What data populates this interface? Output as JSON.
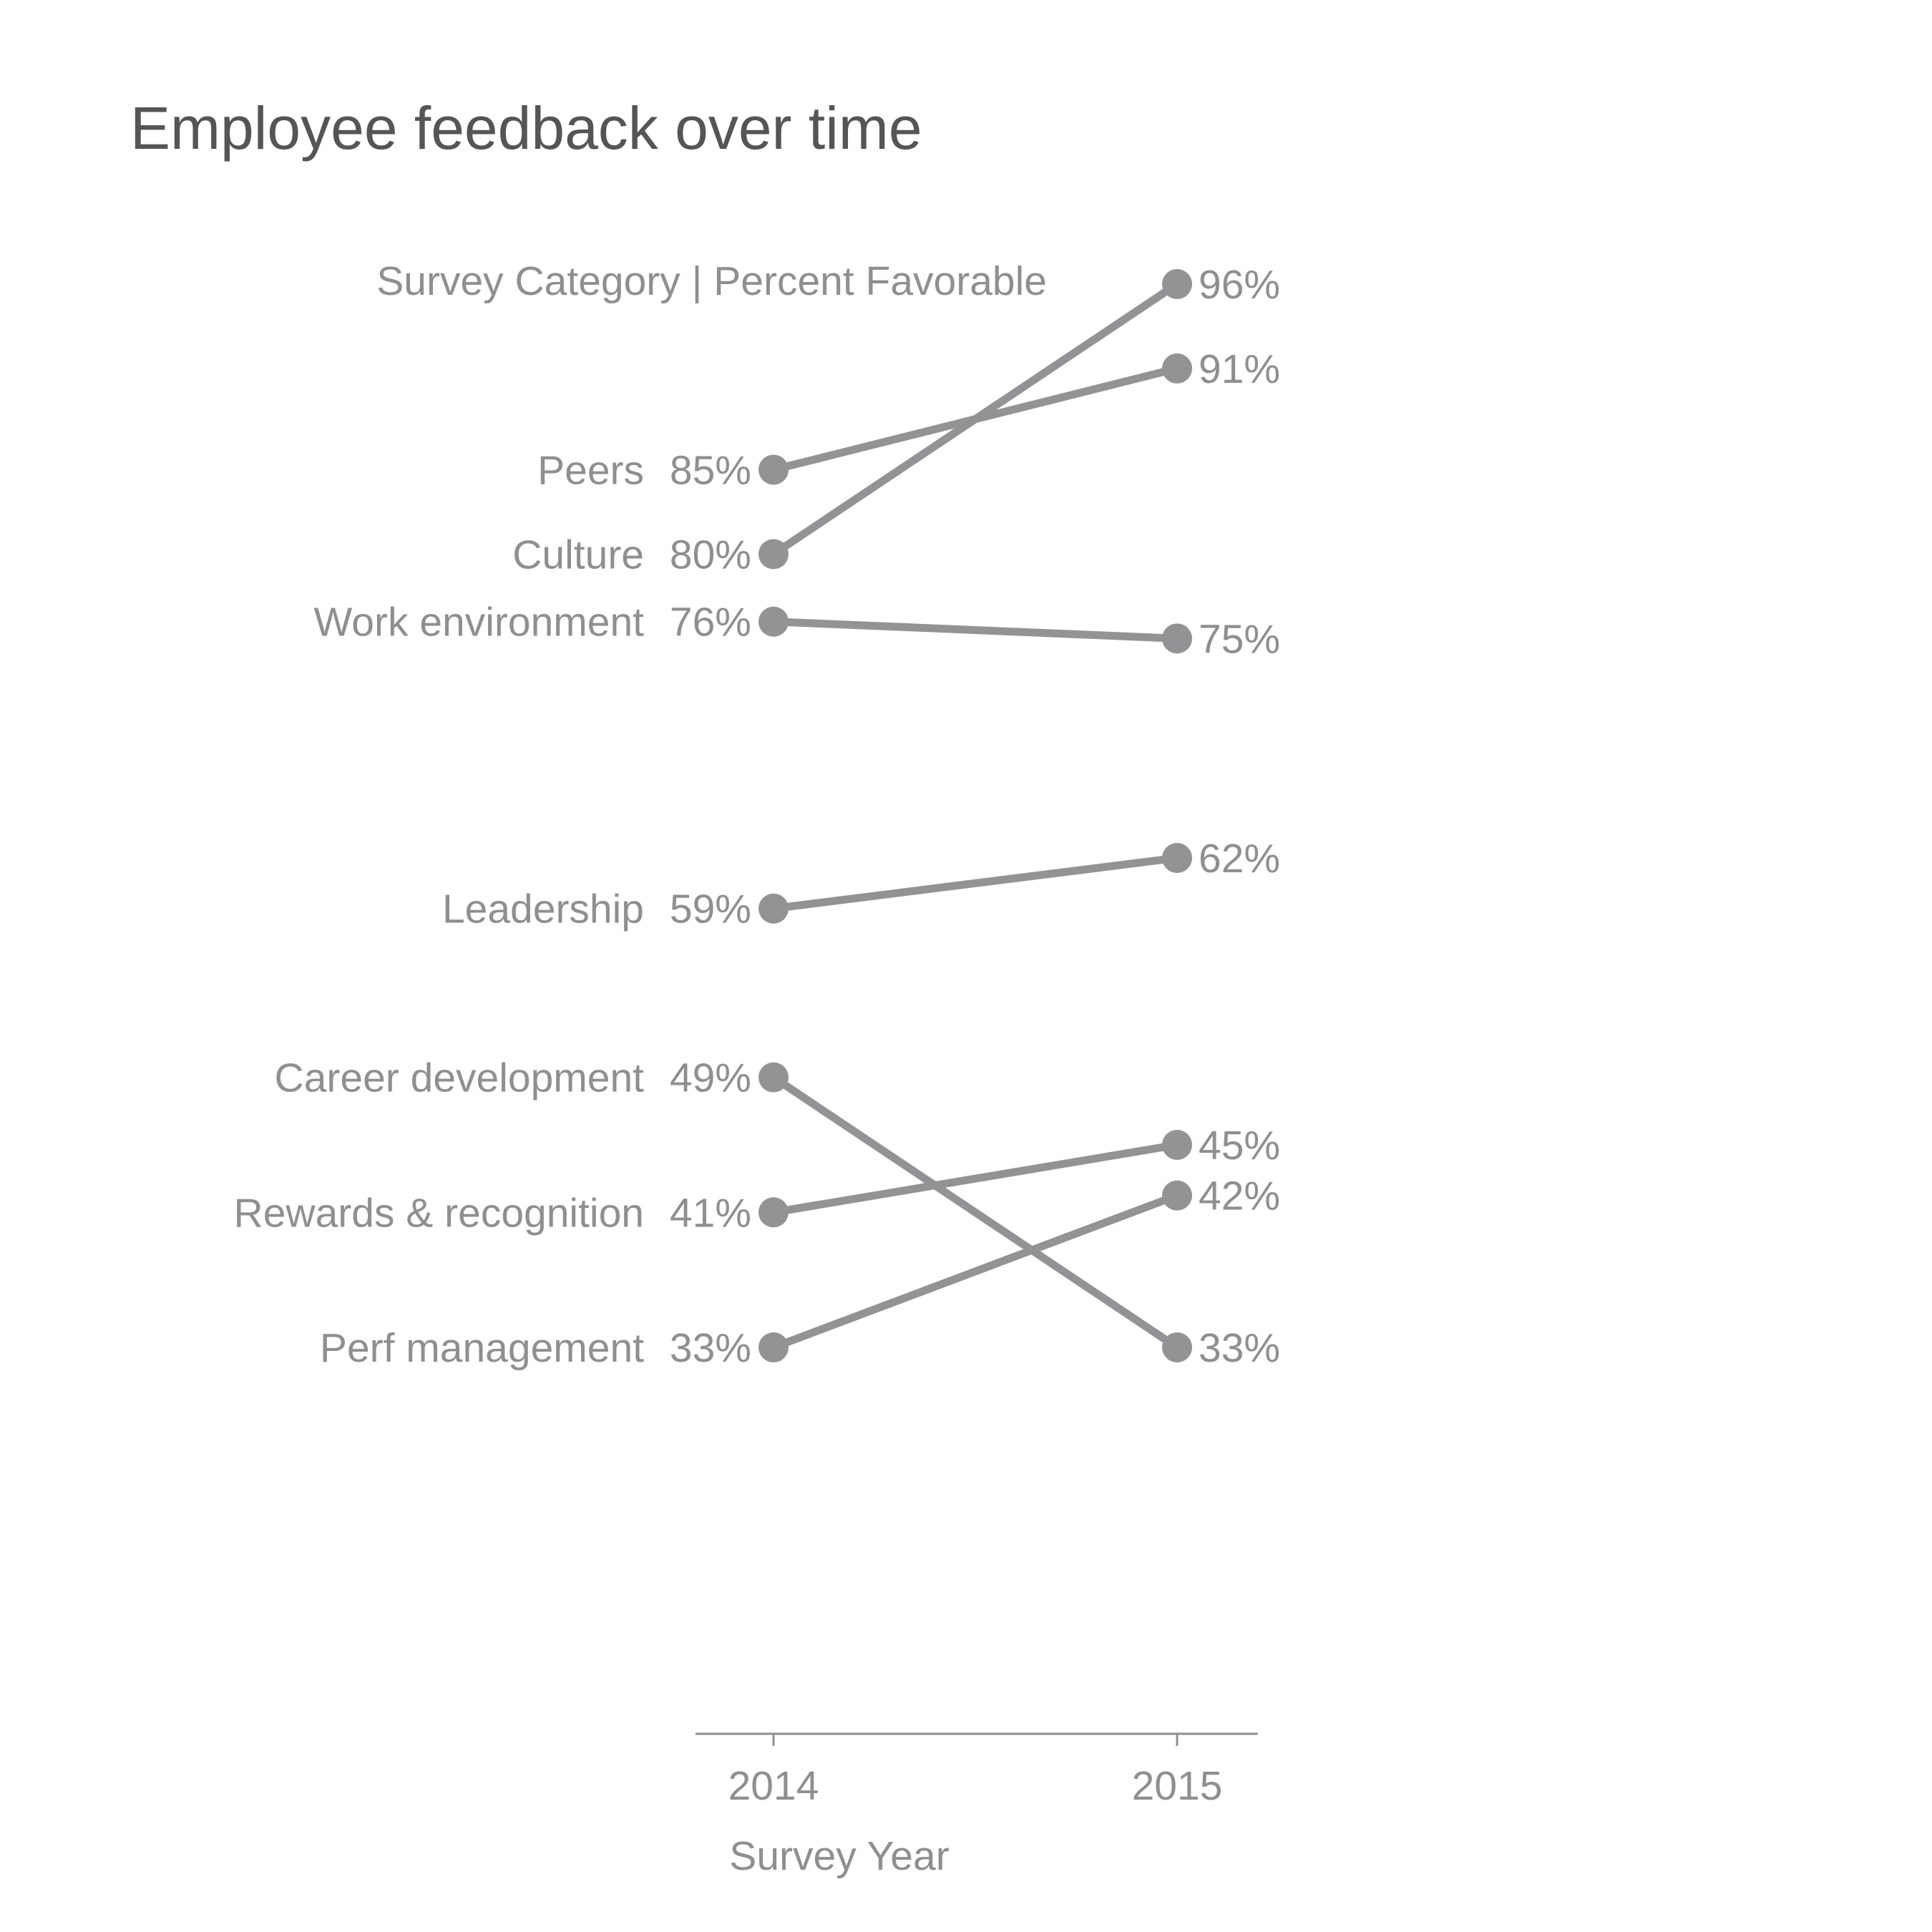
{
  "chart_data": {
    "type": "line",
    "title": "Employee feedback over time",
    "subtitle": "Survey Category | Percent Favorable",
    "xlabel": "Survey Year",
    "ylabel": "",
    "categories": [
      "2014",
      "2015"
    ],
    "grid": false,
    "legend": "none",
    "series": [
      {
        "name": "Peers",
        "values": [
          85,
          91
        ],
        "labels": [
          "85%",
          "91%"
        ]
      },
      {
        "name": "Culture",
        "values": [
          80,
          96
        ],
        "labels": [
          "80%",
          "96%"
        ]
      },
      {
        "name": "Work environment",
        "values": [
          76,
          75
        ],
        "labels": [
          "76%",
          "75%"
        ]
      },
      {
        "name": "Leadership",
        "values": [
          59,
          62
        ],
        "labels": [
          "59%",
          "62%"
        ]
      },
      {
        "name": "Career development",
        "values": [
          49,
          33
        ],
        "labels": [
          "49%",
          "33%"
        ]
      },
      {
        "name": "Rewards & recognition",
        "values": [
          41,
          45
        ],
        "labels": [
          "41%",
          "45%"
        ]
      },
      {
        "name": "Perf management",
        "values": [
          33,
          42
        ],
        "labels": [
          "33%",
          "42%"
        ]
      }
    ]
  },
  "colors": {
    "line": "#939395",
    "text": "#8f8f91",
    "title": "#555555",
    "axis": "#8f8f91"
  }
}
